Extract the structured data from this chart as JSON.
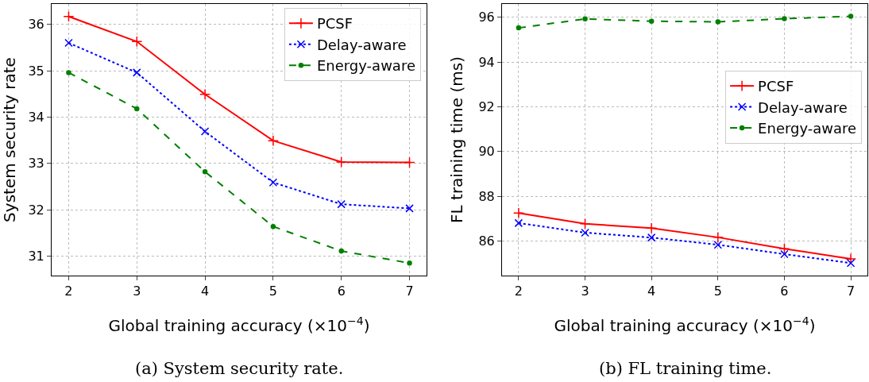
{
  "chart_data": [
    {
      "type": "line",
      "xlabel": "Global training accuracy (×10$^{−4}$)",
      "ylabel": "System security rate",
      "x": [
        2,
        3,
        4,
        5,
        6,
        7
      ],
      "xlim": [
        1.75,
        7.25
      ],
      "xticks": [
        2,
        3,
        4,
        5,
        6,
        7
      ],
      "ylim": [
        30.58,
        36.44
      ],
      "yticks": [
        31,
        32,
        33,
        34,
        35,
        36
      ],
      "grid": true,
      "legend": "top right",
      "annotations": [
        "(a) System security rate."
      ],
      "series": [
        {
          "name": "PCSF",
          "color": "#ff0000",
          "marker": "cross",
          "line_style": "solid",
          "values": [
            36.17,
            35.63,
            34.49,
            33.49,
            33.03,
            33.02
          ]
        },
        {
          "name": "Delay-aware",
          "color": "#0000ff",
          "marker": "x",
          "line_style": "dotted",
          "values": [
            35.6,
            34.96,
            33.69,
            32.59,
            32.12,
            32.03
          ]
        },
        {
          "name": "Energy-aware",
          "color": "#008000",
          "marker": "circle",
          "line_style": "dashed",
          "values": [
            34.96,
            34.18,
            32.82,
            31.64,
            31.11,
            30.85
          ]
        }
      ]
    },
    {
      "type": "line",
      "xlabel": "Global training accuracy (×10$^{−4}$)",
      "ylabel": "FL training time (ms)",
      "x": [
        2,
        3,
        4,
        5,
        6,
        7
      ],
      "xlim": [
        1.75,
        7.25
      ],
      "xticks": [
        2,
        3,
        4,
        5,
        6,
        7
      ],
      "ylim": [
        84.45,
        96.6
      ],
      "yticks": [
        86,
        88,
        90,
        92,
        94,
        96
      ],
      "grid": true,
      "legend": "right",
      "annotations": [
        "(b) FL training time."
      ],
      "series": [
        {
          "name": "PCSF",
          "color": "#ff0000",
          "marker": "cross",
          "line_style": "solid",
          "values": [
            87.25,
            86.77,
            86.57,
            86.16,
            85.65,
            85.2
          ]
        },
        {
          "name": "Delay-aware",
          "color": "#0000ff",
          "marker": "x",
          "line_style": "dotted",
          "values": [
            86.8,
            86.37,
            86.15,
            85.83,
            85.41,
            85.01
          ]
        },
        {
          "name": "Energy-aware",
          "color": "#008000",
          "marker": "circle",
          "line_style": "dashed",
          "values": [
            95.53,
            95.93,
            95.83,
            95.8,
            95.94,
            96.05
          ]
        }
      ]
    }
  ]
}
